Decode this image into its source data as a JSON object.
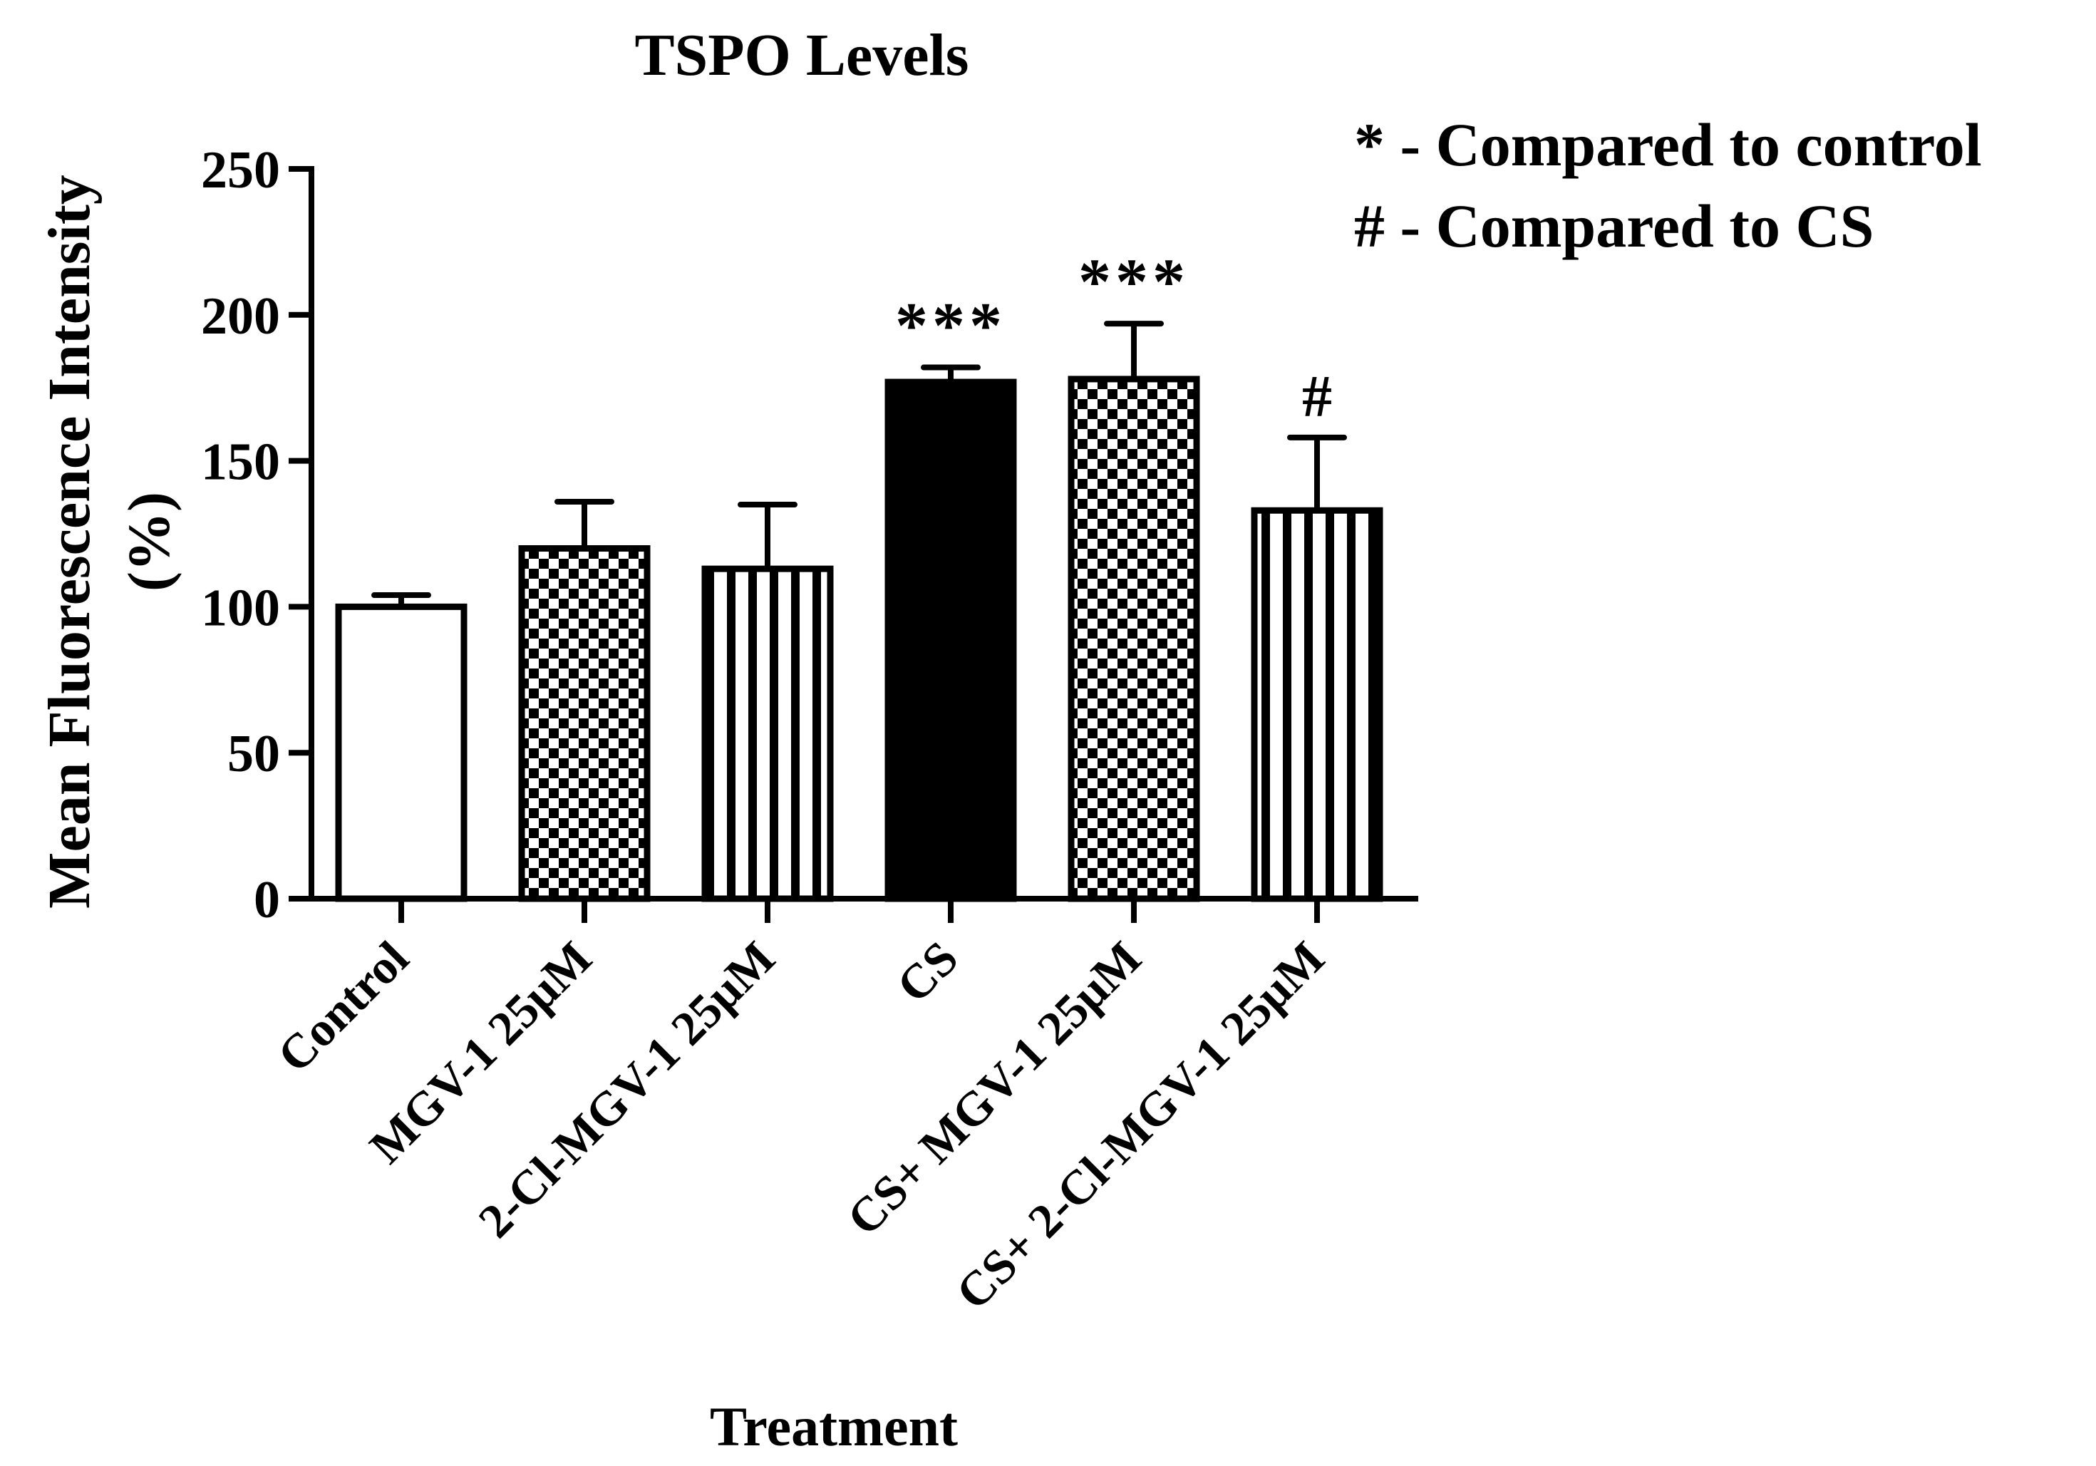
{
  "chart_data": {
    "type": "bar",
    "title": "TSPO Levels",
    "xlabel": "Treatment",
    "ylabel_lines": [
      "Mean Fluorescence Intensity",
      "(%)"
    ],
    "ylim": [
      0,
      250
    ],
    "yticks": [
      0,
      50,
      100,
      150,
      200,
      250
    ],
    "categories": [
      "Control",
      "MGV-1 25µM",
      "2-Cl-MGV-1 25µM",
      "CS",
      "CS+ MGV-1 25µM",
      "CS+ 2-Cl-MGV-1 25µM"
    ],
    "values": [
      100,
      120,
      113,
      177,
      178,
      133
    ],
    "errors": [
      4,
      16,
      22,
      5,
      19,
      25
    ],
    "fills": [
      "white",
      "checker",
      "vstripes",
      "black",
      "checker",
      "vstripes"
    ],
    "significance": [
      "",
      "",
      "",
      "***",
      "***",
      "#"
    ],
    "legend": [
      "* - Compared to control",
      "# - Compared to CS"
    ],
    "grid": false
  }
}
